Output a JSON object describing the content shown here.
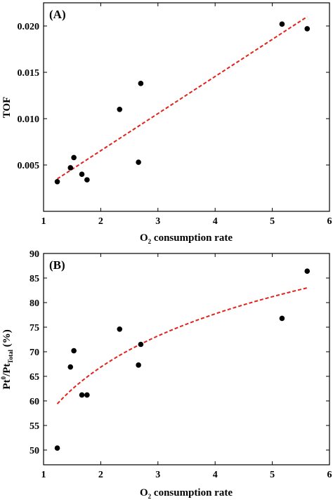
{
  "chart_data": [
    {
      "type": "scatter",
      "panel_label": "(A)",
      "xlabel": "O2 consumption rate",
      "xlabel_main": "O",
      "xlabel_sub": "2",
      "xlabel_rest": " consumption rate",
      "ylabel": "TOF",
      "xlim": [
        1,
        6
      ],
      "ylim": [
        0.0,
        0.0225
      ],
      "x_ticks": [
        1,
        2,
        3,
        4,
        5,
        6
      ],
      "y_ticks": [
        0.005,
        0.01,
        0.015,
        0.02
      ],
      "y_tick_labels": [
        "0.005",
        "0.010",
        "0.015",
        "0.020"
      ],
      "points": [
        {
          "x": 1.24,
          "y": 0.0032
        },
        {
          "x": 1.47,
          "y": 0.0047
        },
        {
          "x": 1.53,
          "y": 0.0058
        },
        {
          "x": 1.67,
          "y": 0.004
        },
        {
          "x": 1.76,
          "y": 0.0034
        },
        {
          "x": 2.33,
          "y": 0.011
        },
        {
          "x": 2.66,
          "y": 0.0053
        },
        {
          "x": 2.7,
          "y": 0.0138
        },
        {
          "x": 5.17,
          "y": 0.0202
        },
        {
          "x": 5.61,
          "y": 0.0197
        }
      ],
      "fit": {
        "kind": "linear",
        "x_range": [
          1.24,
          5.61
        ],
        "y_at_start": 0.0035,
        "y_at_end": 0.021
      },
      "marker_color": "#000000",
      "fit_color": "#e3221b"
    },
    {
      "type": "scatter",
      "panel_label": "(B)",
      "xlabel": "O2 consumption rate",
      "xlabel_main": "O",
      "xlabel_sub": "2",
      "xlabel_rest": " consumption rate",
      "ylabel": "Pt0/PtTotal (%)",
      "ylabel_a": "Pt",
      "ylabel_sup": "0",
      "ylabel_b": "/Pt",
      "ylabel_sub": "Total",
      "ylabel_c": " (%)",
      "xlim": [
        1,
        6
      ],
      "ylim": [
        47,
        90
      ],
      "x_ticks": [
        1,
        2,
        3,
        4,
        5,
        6
      ],
      "y_ticks": [
        50,
        55,
        60,
        65,
        70,
        75,
        80,
        85,
        90
      ],
      "points": [
        {
          "x": 1.24,
          "y": 50.4
        },
        {
          "x": 1.47,
          "y": 66.9
        },
        {
          "x": 1.53,
          "y": 70.2
        },
        {
          "x": 1.67,
          "y": 61.2
        },
        {
          "x": 1.76,
          "y": 61.2
        },
        {
          "x": 2.33,
          "y": 74.6
        },
        {
          "x": 2.66,
          "y": 67.3
        },
        {
          "x": 2.7,
          "y": 71.5
        },
        {
          "x": 5.17,
          "y": 76.8
        },
        {
          "x": 5.61,
          "y": 86.4
        }
      ],
      "fit": {
        "kind": "logarithmic",
        "x_range": [
          1.24,
          5.61
        ],
        "y_at_start": 59.4,
        "y_at_end": 83.0
      },
      "marker_color": "#000000",
      "fit_color": "#e3221b"
    }
  ]
}
